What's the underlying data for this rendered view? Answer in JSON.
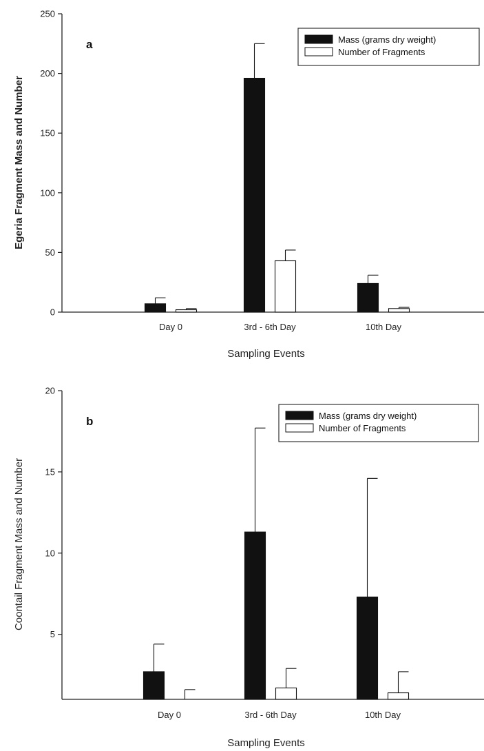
{
  "chart_data": [
    {
      "type": "bar",
      "panel_label": "a",
      "xlabel": "Sampling Events",
      "ylabel": "Egeria Fragment Mass and Number",
      "categories": [
        "Day 0",
        "3rd - 6th Day",
        "10th Day"
      ],
      "ylim": [
        0,
        250
      ],
      "yticks": [
        0,
        50,
        100,
        150,
        200,
        250
      ],
      "legend_position": "top-right",
      "series": [
        {
          "name": "Mass (grams dry weight)",
          "color": "#111111",
          "values": [
            7,
            196,
            24
          ],
          "errors": [
            5,
            29,
            7
          ]
        },
        {
          "name": "Number of Fragments",
          "color": "#ffffff",
          "values": [
            2,
            43,
            3
          ],
          "errors": [
            1,
            9,
            1
          ]
        }
      ]
    },
    {
      "type": "bar",
      "panel_label": "b",
      "xlabel": "Sampling Events",
      "ylabel": "Coontail Fragment Mass and Number",
      "categories": [
        "Day 0",
        "3rd - 6th Day",
        "10th Day"
      ],
      "ylim": [
        1,
        20
      ],
      "yticks": [
        5,
        10,
        15,
        20
      ],
      "legend_position": "top-right",
      "series": [
        {
          "name": "Mass (grams dry weight)",
          "color": "#111111",
          "values": [
            2.7,
            11.3,
            7.3
          ],
          "errors": [
            1.7,
            6.4,
            7.3
          ]
        },
        {
          "name": "Number of Fragments",
          "color": "#ffffff",
          "values": [
            0.9,
            1.7,
            1.4
          ],
          "errors": [
            0.7,
            1.2,
            1.3
          ]
        }
      ]
    }
  ]
}
